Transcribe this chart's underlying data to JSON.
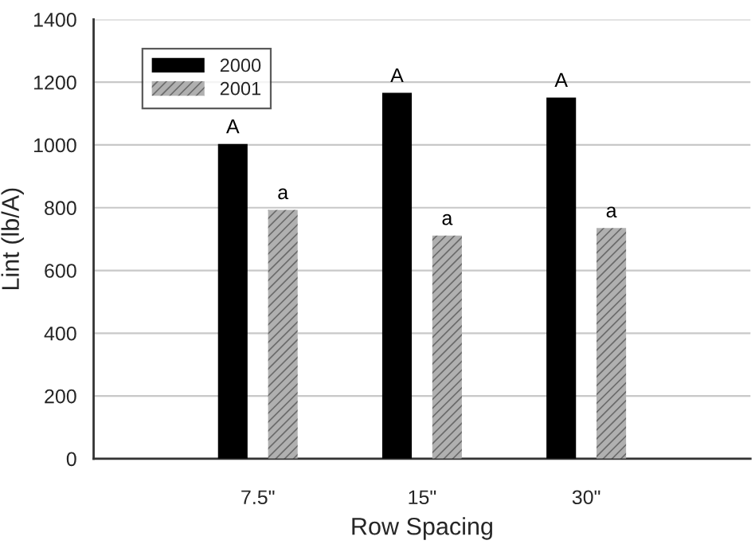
{
  "chart_data": {
    "type": "bar",
    "xlabel": "Row Spacing",
    "ylabel": "Lint (lb/A)",
    "categories": [
      "7.5\"",
      "15\"",
      "30\""
    ],
    "series": [
      {
        "name": "2000",
        "color": "#000000",
        "values": [
          1003,
          1166,
          1151
        ]
      },
      {
        "name": "2001",
        "color": "#b0b0b0",
        "values": [
          793,
          711,
          735
        ]
      }
    ],
    "ylim": [
      0,
      1400
    ],
    "yticks": [
      0,
      200,
      400,
      600,
      800,
      1000,
      1200,
      1400
    ],
    "grid": "y",
    "legend": "top left",
    "annotations": [
      "A",
      "A",
      "A",
      "a",
      "a",
      "a"
    ]
  }
}
